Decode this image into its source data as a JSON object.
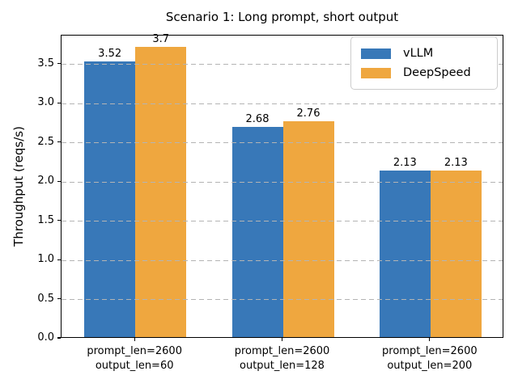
{
  "figure": {
    "title": "Scenario 1: Long prompt, short output"
  },
  "chart_data": {
    "type": "bar",
    "title": "Scenario 1: Long prompt, short output",
    "xlabel": "",
    "ylabel": "Throughput (reqs/s)",
    "categories": [
      [
        "prompt_len=2600",
        "output_len=60"
      ],
      [
        "prompt_len=2600",
        "output_len=128"
      ],
      [
        "prompt_len=2600",
        "output_len=200"
      ]
    ],
    "series": [
      {
        "name": "vLLM",
        "color": "#3878b8",
        "values": [
          3.52,
          2.68,
          2.13
        ],
        "labels": [
          "3.52",
          "2.68",
          "2.13"
        ]
      },
      {
        "name": "DeepSpeed",
        "color": "#efa73f",
        "values": [
          3.7,
          2.76,
          2.13
        ],
        "labels": [
          "3.7",
          "2.76",
          "2.13"
        ]
      }
    ],
    "yticks": [
      0.0,
      0.5,
      1.0,
      1.5,
      2.0,
      2.5,
      3.0,
      3.5
    ],
    "ytick_labels": [
      "0.0",
      "0.5",
      "1.0",
      "1.5",
      "2.0",
      "2.5",
      "3.0",
      "3.5"
    ],
    "ylim": [
      0,
      3.87
    ],
    "grid": {
      "axis": "y",
      "style": "dashed",
      "color": "#b4b4b4",
      "over_bars": true
    },
    "legend": {
      "position": "upper right",
      "entries": [
        "vLLM",
        "DeepSpeed"
      ]
    },
    "background": "#ffffff",
    "spine_color": "#000000"
  }
}
